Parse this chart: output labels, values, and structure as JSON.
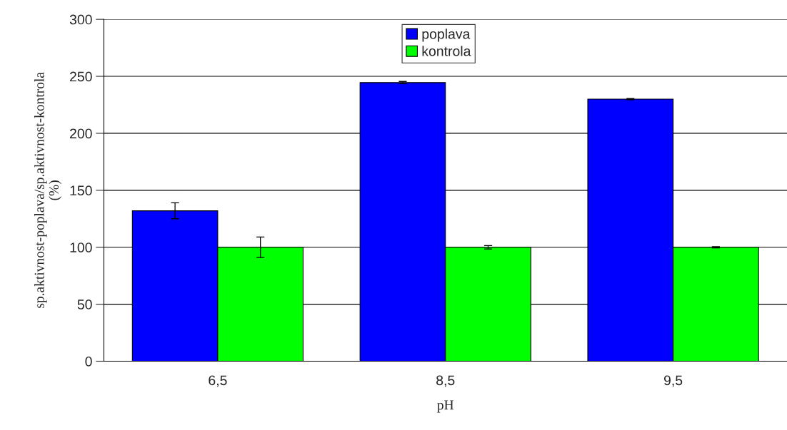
{
  "chart_data": {
    "type": "bar",
    "xlabel": "pH",
    "ylabel": "sp.aktivnost-poplava/sp.aktivnost-kontrola\n(%)",
    "categories": [
      "6,5",
      "8,5",
      "9,5"
    ],
    "series": [
      {
        "name": "poplava",
        "color": "#0000ff",
        "values": [
          132,
          244.5,
          230
        ],
        "errors": [
          7,
          1,
          0.5
        ]
      },
      {
        "name": "kontrola",
        "color": "#00ff00",
        "values": [
          100,
          100,
          100
        ],
        "errors": [
          9,
          1.5,
          0.5
        ]
      }
    ],
    "ylim": [
      0,
      300
    ],
    "yticks": [
      0,
      50,
      100,
      150,
      200,
      250,
      300
    ],
    "grid": "y",
    "legend": "top"
  }
}
